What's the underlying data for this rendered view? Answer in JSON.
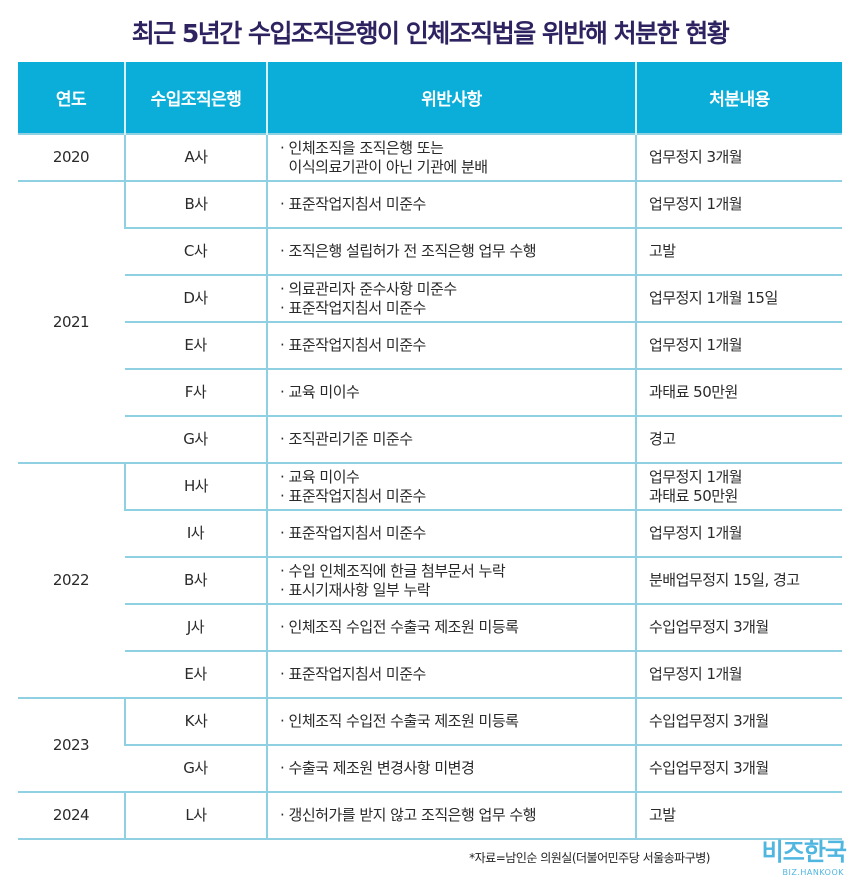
{
  "title": "최근 5년간 수입조직은행이 인체조직법을 위반해 처분한 현황",
  "headers": [
    "연도",
    "수입조직은행",
    "위반사항",
    "처분내용"
  ],
  "groups": [
    {
      "year": "2020",
      "rows": [
        {
          "bank": "A사",
          "violations": [
            "인체조직을 조직은행 또는",
            "이식의료기관이 아닌 기관에 분배"
          ],
          "continued": true,
          "penalty": [
            "업무정지 3개월"
          ]
        }
      ]
    },
    {
      "year": "2021",
      "rows": [
        {
          "bank": "B사",
          "violations": [
            "표준작업지침서 미준수"
          ],
          "penalty": [
            "업무정지 1개월"
          ]
        },
        {
          "bank": "C사",
          "violations": [
            "조직은행 설립허가 전 조직은행 업무 수행"
          ],
          "penalty": [
            "고발"
          ]
        },
        {
          "bank": "D사",
          "violations": [
            "의료관리자 준수사항 미준수",
            "표준작업지침서 미준수"
          ],
          "penalty": [
            "업무정지 1개월 15일"
          ]
        },
        {
          "bank": "E사",
          "violations": [
            "표준작업지침서 미준수"
          ],
          "penalty": [
            "업무정지 1개월"
          ]
        },
        {
          "bank": "F사",
          "violations": [
            "교육 미이수"
          ],
          "penalty": [
            "과태료 50만원"
          ]
        },
        {
          "bank": "G사",
          "violations": [
            "조직관리기준 미준수"
          ],
          "penalty": [
            "경고"
          ]
        }
      ]
    },
    {
      "year": "2022",
      "rows": [
        {
          "bank": "H사",
          "violations": [
            "교육 미이수",
            "표준작업지침서 미준수"
          ],
          "penalty": [
            "업무정지 1개월",
            "과태료 50만원"
          ]
        },
        {
          "bank": "I사",
          "violations": [
            "표준작업지침서 미준수"
          ],
          "penalty": [
            "업무정지 1개월"
          ]
        },
        {
          "bank": "B사",
          "violations": [
            "수입 인체조직에 한글 첨부문서 누락",
            "표시기재사항 일부 누락"
          ],
          "penalty": [
            "분배업무정지 15일, 경고"
          ]
        },
        {
          "bank": "J사",
          "violations": [
            "인체조직 수입전 수출국 제조원 미등록"
          ],
          "penalty": [
            "수입업무정지 3개월"
          ]
        },
        {
          "bank": "E사",
          "violations": [
            "표준작업지침서 미준수"
          ],
          "penalty": [
            "업무정지 1개월"
          ]
        }
      ]
    },
    {
      "year": "2023",
      "rows": [
        {
          "bank": "K사",
          "violations": [
            "인체조직 수입전 수출국 제조원 미등록"
          ],
          "penalty": [
            "수입업무정지 3개월"
          ]
        },
        {
          "bank": "G사",
          "violations": [
            "수출국 제조원 변경사항 미변경"
          ],
          "penalty": [
            "수입업무정지 3개월"
          ]
        }
      ]
    },
    {
      "year": "2024",
      "rows": [
        {
          "bank": "L사",
          "violations": [
            "갱신허가를 받지 않고 조직은행 업무 수행"
          ],
          "penalty": [
            "고발"
          ]
        }
      ]
    }
  ],
  "source": "*자료=남인순 의원실(더불어민주당 서울송파구병)",
  "logo": {
    "korean": "비즈한국",
    "english": "BIZ.HANKOOK"
  }
}
